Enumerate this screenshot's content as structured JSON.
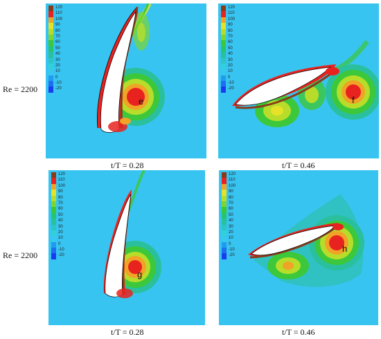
{
  "colors": {
    "background": "#38c4f0",
    "airfoil": "#ffffff",
    "contour_outline": "#000000"
  },
  "legend": {
    "levels": [
      {
        "label": "120",
        "color": "#8a3b1a"
      },
      {
        "label": "110",
        "color": "#e8231f"
      },
      {
        "label": "100",
        "color": "#f0a327"
      },
      {
        "label": "90",
        "color": "#e6e227"
      },
      {
        "label": "80",
        "color": "#b7dd2a"
      },
      {
        "label": "70",
        "color": "#7ed532"
      },
      {
        "label": "60",
        "color": "#3cc83a"
      },
      {
        "label": "50",
        "color": "#27c46f"
      },
      {
        "label": "40",
        "color": "#2ac09e"
      },
      {
        "label": "30",
        "color": "#2cc5c5"
      },
      {
        "label": "20",
        "color": "#30d1d8"
      },
      {
        "label": "10",
        "color": "#36c8ee"
      },
      {
        "label": "0",
        "color": "#1f9bf0"
      },
      {
        "label": "-10",
        "color": "#1e6ef0"
      },
      {
        "label": "-20",
        "color": "#1a3cf0"
      }
    ]
  },
  "row_labels": [
    "Re = 2200",
    "Re = 2200"
  ],
  "panels": [
    {
      "marker": "e",
      "caption": "t/T = 0.28"
    },
    {
      "marker": "f",
      "caption": "t/T = 0.46"
    },
    {
      "marker": "g",
      "caption": "t/T = 0.28"
    },
    {
      "marker": "h",
      "caption": "t/T = 0.46"
    }
  ]
}
